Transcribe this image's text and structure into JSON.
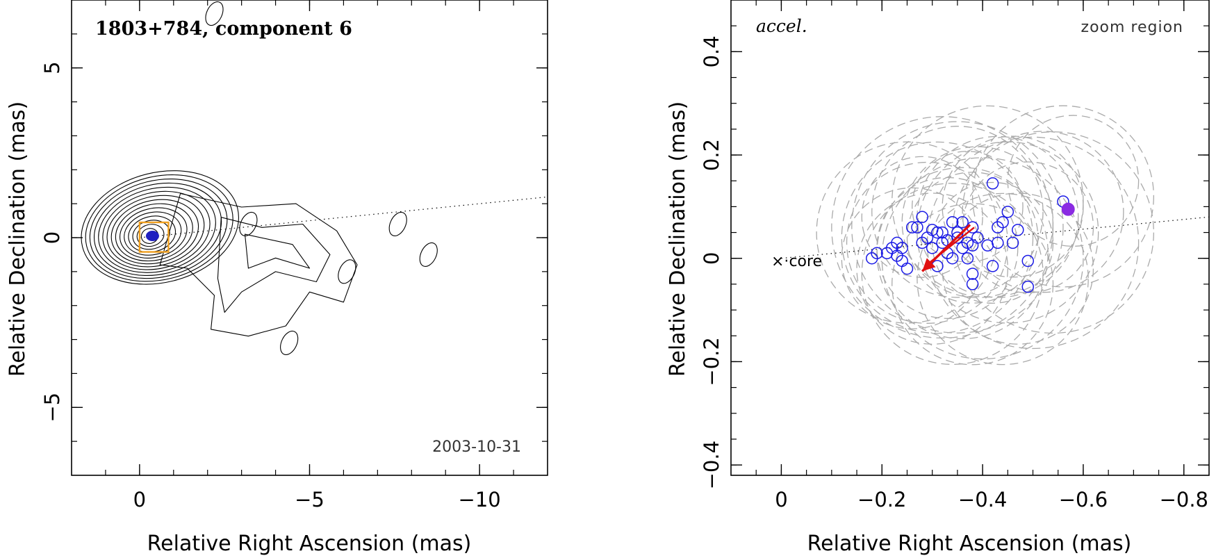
{
  "chart_data": [
    {
      "type": "contour",
      "title": "1803+784, component 6",
      "date": "2003-10-31",
      "xlabel": "Relative Right Ascension (mas)",
      "ylabel": "Relative Declination (mas)",
      "xlim": [
        2,
        -12
      ],
      "ylim": [
        -7,
        7
      ],
      "xticks": [
        0,
        -5,
        -10
      ],
      "xtick_labels": [
        "0",
        "−5",
        "−10"
      ],
      "yticks": [
        -5,
        0,
        5
      ],
      "ytick_labels": [
        "−5",
        "0",
        "5"
      ],
      "colors": {
        "contour": "#000000",
        "box": "#f0a020",
        "component": "#2020c0",
        "ridge": "#000000"
      },
      "zoom_box": {
        "x": [
          0,
          -0.85
        ],
        "y": [
          -0.42,
          0.45
        ]
      },
      "component_marker": {
        "x": -0.38,
        "y": 0.05
      },
      "ridge_line": {
        "x": [
          0,
          -12
        ],
        "y": [
          0,
          1.2
        ]
      },
      "contour_count": 15,
      "knots": [
        {
          "x": -3.2,
          "y": 0.4
        },
        {
          "x": -7.6,
          "y": 0.4
        },
        {
          "x": -8.5,
          "y": -0.5
        },
        {
          "x": -6.1,
          "y": -1.0
        },
        {
          "x": -4.4,
          "y": -3.1
        },
        {
          "x": -2.2,
          "y": 6.6
        }
      ]
    },
    {
      "type": "scatter",
      "tag": "accel.",
      "corner_label": "zoom region",
      "core_label": "core",
      "xlabel": "Relative Right Ascension (mas)",
      "ylabel": "Relative Declination (mas)",
      "xlim": [
        0.1,
        -0.85
      ],
      "ylim": [
        -0.42,
        0.5
      ],
      "xticks": [
        0,
        -0.2,
        -0.4,
        -0.6,
        -0.8
      ],
      "xtick_labels": [
        "0",
        "−0.2",
        "−0.4",
        "−0.6",
        "−0.8"
      ],
      "yticks": [
        -0.4,
        -0.2,
        0,
        0.2,
        0.4
      ],
      "ytick_labels": [
        "−0.4",
        "−0.2",
        "0",
        "0.2",
        "0.4"
      ],
      "colors": {
        "points": "#1a1ae6",
        "arrow": "#e01010",
        "position": "#8a2be2",
        "circles": "#aaaaaa"
      },
      "points": [
        [
          -0.18,
          0.0
        ],
        [
          -0.19,
          0.01
        ],
        [
          -0.21,
          0.01
        ],
        [
          -0.22,
          0.02
        ],
        [
          -0.23,
          0.03
        ],
        [
          -0.23,
          0.005
        ],
        [
          -0.24,
          0.02
        ],
        [
          -0.24,
          -0.005
        ],
        [
          -0.25,
          -0.02
        ],
        [
          -0.26,
          0.06
        ],
        [
          -0.27,
          0.06
        ],
        [
          -0.28,
          0.08
        ],
        [
          -0.28,
          0.03
        ],
        [
          -0.29,
          0.04
        ],
        [
          -0.3,
          0.02
        ],
        [
          -0.3,
          0.055
        ],
        [
          -0.31,
          0.05
        ],
        [
          -0.31,
          -0.015
        ],
        [
          -0.32,
          0.05
        ],
        [
          -0.32,
          0.03
        ],
        [
          -0.33,
          0.035
        ],
        [
          -0.33,
          0.01
        ],
        [
          -0.34,
          0.07
        ],
        [
          -0.34,
          0.0
        ],
        [
          -0.35,
          0.05
        ],
        [
          -0.35,
          0.04
        ],
        [
          -0.36,
          0.07
        ],
        [
          -0.36,
          0.02
        ],
        [
          -0.37,
          0.0
        ],
        [
          -0.37,
          0.03
        ],
        [
          -0.38,
          -0.03
        ],
        [
          -0.38,
          -0.05
        ],
        [
          -0.38,
          0.025
        ],
        [
          -0.38,
          0.06
        ],
        [
          -0.39,
          0.04
        ],
        [
          -0.41,
          0.025
        ],
        [
          -0.42,
          -0.015
        ],
        [
          -0.43,
          0.06
        ],
        [
          -0.43,
          0.03
        ],
        [
          -0.42,
          0.145
        ],
        [
          -0.44,
          0.07
        ],
        [
          -0.45,
          0.09
        ],
        [
          -0.46,
          0.03
        ],
        [
          -0.47,
          0.055
        ],
        [
          -0.49,
          -0.005
        ],
        [
          -0.49,
          -0.055
        ],
        [
          -0.56,
          0.11
        ]
      ],
      "position": {
        "x": -0.57,
        "y": 0.095
      },
      "arrow": {
        "x": [
          -0.375,
          -0.28
        ],
        "y": [
          0.065,
          -0.025
        ]
      },
      "ridge_line": {
        "x": [
          0,
          -0.85
        ],
        "y": [
          0,
          0.08
        ]
      },
      "uncertainty_circles": [
        {
          "cx": -0.25,
          "cy": 0.05,
          "r": 0.18
        },
        {
          "cx": -0.29,
          "cy": 0.03,
          "r": 0.16
        },
        {
          "cx": -0.31,
          "cy": 0.04,
          "r": 0.19
        },
        {
          "cx": -0.33,
          "cy": 0.02,
          "r": 0.14
        },
        {
          "cx": -0.35,
          "cy": 0.06,
          "r": 0.21
        },
        {
          "cx": -0.36,
          "cy": 0.01,
          "r": 0.17
        },
        {
          "cx": -0.38,
          "cy": 0.04,
          "r": 0.13
        },
        {
          "cx": -0.39,
          "cy": 0.07,
          "r": 0.15
        },
        {
          "cx": -0.4,
          "cy": 0.0,
          "r": 0.2
        },
        {
          "cx": -0.42,
          "cy": 0.03,
          "r": 0.12
        },
        {
          "cx": -0.43,
          "cy": 0.08,
          "r": 0.16
        },
        {
          "cx": -0.45,
          "cy": 0.05,
          "r": 0.18
        },
        {
          "cx": -0.46,
          "cy": 0.1,
          "r": 0.14
        },
        {
          "cx": -0.47,
          "cy": -0.02,
          "r": 0.15
        },
        {
          "cx": -0.49,
          "cy": 0.06,
          "r": 0.13
        },
        {
          "cx": -0.28,
          "cy": 0.08,
          "r": 0.12
        },
        {
          "cx": -0.3,
          "cy": -0.02,
          "r": 0.15
        },
        {
          "cx": -0.34,
          "cy": -0.03,
          "r": 0.18
        },
        {
          "cx": -0.37,
          "cy": 0.1,
          "r": 0.11
        },
        {
          "cx": -0.41,
          "cy": 0.11,
          "r": 0.19
        },
        {
          "cx": -0.44,
          "cy": -0.04,
          "r": 0.17
        },
        {
          "cx": -0.5,
          "cy": 0.03,
          "r": 0.21
        },
        {
          "cx": -0.52,
          "cy": 0.09,
          "r": 0.16
        },
        {
          "cx": -0.54,
          "cy": 0.05,
          "r": 0.2
        },
        {
          "cx": -0.56,
          "cy": 0.12,
          "r": 0.18
        },
        {
          "cx": -0.58,
          "cy": 0.15,
          "r": 0.13
        },
        {
          "cx": -0.32,
          "cy": 0.06,
          "r": 0.22
        },
        {
          "cx": -0.26,
          "cy": 0.0,
          "r": 0.14
        },
        {
          "cx": -0.38,
          "cy": -0.05,
          "r": 0.16
        },
        {
          "cx": -0.35,
          "cy": 0.09,
          "r": 0.17
        }
      ]
    }
  ]
}
